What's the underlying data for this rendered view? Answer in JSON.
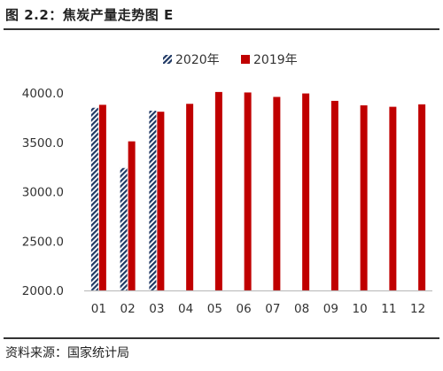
{
  "header": {
    "title": "图 2.2：焦炭产量走势图 E"
  },
  "footer": {
    "source": "资料来源：国家统计局"
  },
  "colors": {
    "series_2019": "#c00000",
    "series_2020": "#1f3864",
    "axis": "#bfbfbf"
  },
  "chart_data": {
    "type": "bar",
    "categories": [
      "01",
      "02",
      "03",
      "04",
      "05",
      "06",
      "07",
      "08",
      "09",
      "10",
      "11",
      "12"
    ],
    "series": [
      {
        "name": "2020年",
        "pattern": "diagonal-hatch",
        "values": [
          3850,
          3240,
          3820,
          null,
          null,
          null,
          null,
          null,
          null,
          null,
          null,
          null
        ]
      },
      {
        "name": "2019年",
        "pattern": "solid",
        "values": [
          3880,
          3510,
          3810,
          3890,
          4010,
          4005,
          3960,
          3995,
          3920,
          3875,
          3860,
          3885
        ]
      }
    ],
    "ylim": [
      2000,
      4000
    ],
    "yticks": [
      "2000.0",
      "2500.0",
      "3000.0",
      "3500.0",
      "4000.0"
    ],
    "ytick_values": [
      2000,
      2500,
      3000,
      3500,
      4000
    ],
    "legend_position": "top-center",
    "grid": false
  }
}
